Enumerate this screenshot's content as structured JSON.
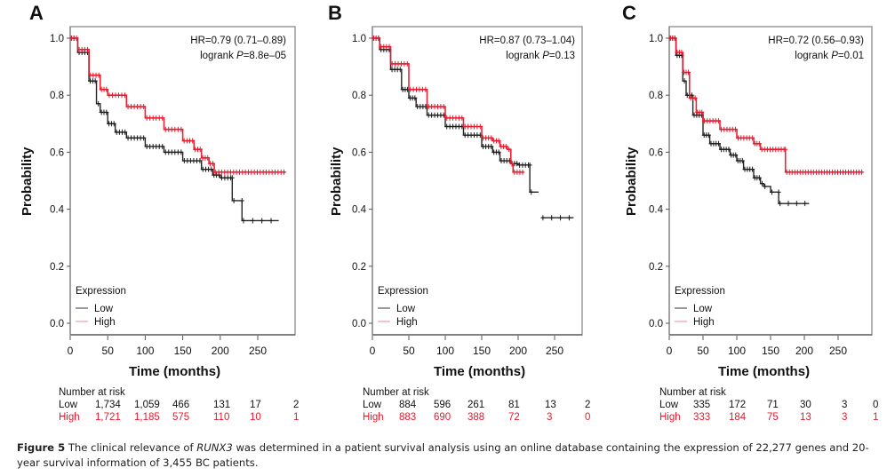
{
  "figure": {
    "caption_label": "Figure 5",
    "caption_pre": " The clinical relevance of ",
    "caption_gene": "RUNX3",
    "caption_post": " was determined in a patient survival analysis using an online database containing the expression of 22,277 genes and 20-year survival information of 3,455 BC patients."
  },
  "colors": {
    "low": "#1a1a1a",
    "high": "#e8192c",
    "high_legend": "#e8a0a8",
    "low_legend": "#555555"
  },
  "chart_data": [
    {
      "type": "line",
      "panel": "A",
      "xlabel": "Time (months)",
      "ylabel": "Probability",
      "xlim": [
        0,
        290
      ],
      "ylim": [
        0,
        1.0
      ],
      "xticks": [
        0,
        50,
        100,
        150,
        200,
        250
      ],
      "yticks": [
        "0.0",
        "0.2",
        "0.4",
        "0.6",
        "0.8",
        "1.0"
      ],
      "annotation": {
        "hr": "HR=0.79 (0.71–0.89)",
        "logrank_pre": "logrank ",
        "p_label": "P",
        "p_value": "=8.8e–05"
      },
      "legend": {
        "title": "Expression",
        "entries": [
          "Low",
          "High"
        ],
        "position": "bottom-left"
      },
      "series": [
        {
          "name": "Low",
          "x": [
            0,
            10,
            25,
            35,
            40,
            50,
            60,
            75,
            100,
            125,
            150,
            175,
            190,
            200,
            216,
            216,
            229,
            229,
            278
          ],
          "y": [
            1.0,
            0.95,
            0.85,
            0.77,
            0.74,
            0.7,
            0.67,
            0.65,
            0.62,
            0.6,
            0.57,
            0.54,
            0.52,
            0.51,
            0.51,
            0.43,
            0.43,
            0.36,
            0.36
          ]
        },
        {
          "name": "High",
          "x": [
            0,
            10,
            25,
            40,
            50,
            75,
            100,
            125,
            150,
            165,
            175,
            185,
            192,
            287
          ],
          "y": [
            1.0,
            0.96,
            0.87,
            0.82,
            0.8,
            0.76,
            0.72,
            0.68,
            0.64,
            0.61,
            0.58,
            0.56,
            0.53,
            0.53
          ]
        }
      ],
      "number_at_risk": {
        "title": "Number at risk",
        "rows": [
          {
            "label": "Low",
            "values": [
              "1,734",
              "1,059",
              "466",
              "131",
              "17",
              "2"
            ]
          },
          {
            "label": "High",
            "values": [
              "1,721",
              "1,185",
              "575",
              "110",
              "10",
              "1"
            ]
          }
        ]
      }
    },
    {
      "type": "line",
      "panel": "B",
      "xlabel": "Time (months)",
      "ylabel": "Probability",
      "xlim": [
        0,
        290
      ],
      "ylim": [
        0,
        1.0
      ],
      "xticks": [
        0,
        50,
        100,
        150,
        200,
        250
      ],
      "yticks": [
        "0.0",
        "0.2",
        "0.4",
        "0.6",
        "0.8",
        "1.0"
      ],
      "annotation": {
        "hr": "HR=0.87 (0.73–1.04)",
        "logrank_pre": "logrank ",
        "p_label": "P",
        "p_value": "=0.13"
      },
      "legend": {
        "title": "Expression",
        "entries": [
          "Low",
          "High"
        ],
        "position": "bottom-left"
      },
      "series": [
        {
          "name": "Low",
          "x": [
            0,
            10,
            25,
            40,
            50,
            60,
            75,
            100,
            125,
            150,
            165,
            175,
            190,
            200,
            216,
            216,
            228
          ],
          "y": [
            1.0,
            0.96,
            0.89,
            0.82,
            0.79,
            0.76,
            0.73,
            0.69,
            0.66,
            0.62,
            0.6,
            0.57,
            0.56,
            0.555,
            0.555,
            0.46,
            0.46
          ]
        },
        {
          "name": "Low-tail",
          "x": [
            232,
            276
          ],
          "y": [
            0.37,
            0.37
          ]
        },
        {
          "name": "High",
          "x": [
            0,
            10,
            25,
            50,
            75,
            100,
            125,
            150,
            165,
            175,
            185,
            190,
            193,
            208
          ],
          "y": [
            1.0,
            0.97,
            0.91,
            0.82,
            0.76,
            0.72,
            0.69,
            0.65,
            0.64,
            0.62,
            0.61,
            0.56,
            0.53,
            0.53
          ]
        }
      ],
      "number_at_risk": {
        "title": "Number at risk",
        "rows": [
          {
            "label": "Low",
            "values": [
              "884",
              "596",
              "261",
              "81",
              "13",
              "2"
            ]
          },
          {
            "label": "High",
            "values": [
              "883",
              "690",
              "388",
              "72",
              "3",
              "0"
            ]
          }
        ]
      }
    },
    {
      "type": "line",
      "panel": "C",
      "xlabel": "Time (months)",
      "ylabel": "Probability",
      "xlim": [
        0,
        300
      ],
      "ylim": [
        0,
        1.0
      ],
      "xticks": [
        0,
        50,
        100,
        150,
        200,
        250
      ],
      "yticks": [
        "0.0",
        "0.2",
        "0.4",
        "0.6",
        "0.8",
        "1.0"
      ],
      "annotation": {
        "hr": "HR=0.72 (0.56–0.93)",
        "logrank_pre": "logrank ",
        "p_label": "P",
        "p_value": "=0.01"
      },
      "legend": {
        "title": "Expression",
        "entries": [
          "Low",
          "High"
        ],
        "position": "bottom-left"
      },
      "series": [
        {
          "name": "Low",
          "x": [
            0,
            10,
            20,
            25,
            35,
            50,
            60,
            75,
            90,
            100,
            110,
            125,
            135,
            140,
            150,
            162,
            162,
            207
          ],
          "y": [
            1.0,
            0.94,
            0.85,
            0.8,
            0.73,
            0.66,
            0.63,
            0.61,
            0.59,
            0.57,
            0.54,
            0.51,
            0.49,
            0.48,
            0.46,
            0.46,
            0.42,
            0.42
          ]
        },
        {
          "name": "High",
          "x": [
            0,
            10,
            20,
            30,
            40,
            50,
            75,
            100,
            125,
            135,
            172,
            172,
            287
          ],
          "y": [
            1.0,
            0.95,
            0.88,
            0.79,
            0.74,
            0.71,
            0.68,
            0.65,
            0.63,
            0.61,
            0.61,
            0.53,
            0.53
          ]
        }
      ],
      "number_at_risk": {
        "title": "Number at risk",
        "rows": [
          {
            "label": "Low",
            "values": [
              "335",
              "172",
              "71",
              "30",
              "3",
              "0"
            ]
          },
          {
            "label": "High",
            "values": [
              "333",
              "184",
              "75",
              "13",
              "3",
              "1"
            ]
          }
        ]
      }
    }
  ]
}
